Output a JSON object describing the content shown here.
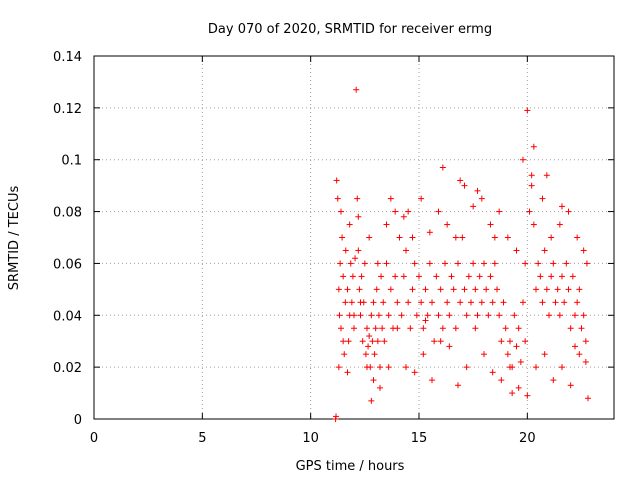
{
  "chart_data": {
    "type": "scatter",
    "title": "Day 070 of 2020, SRMTID for receiver ermg",
    "xlabel": "GPS time / hours",
    "ylabel": "SRMTID / TECUs",
    "xlim": [
      0,
      24
    ],
    "ylim": [
      0,
      0.14
    ],
    "xticks": [
      0,
      5,
      10,
      15,
      20
    ],
    "xtick_labels": [
      "0",
      "5",
      "10",
      "15",
      "20"
    ],
    "yticks": [
      0,
      0.02,
      0.04,
      0.06,
      0.08,
      0.1,
      0.12,
      0.14
    ],
    "ytick_labels": [
      "0",
      "0.02",
      "0.04",
      "0.06",
      "0.08",
      "0.1",
      "0.12",
      "0.14"
    ],
    "grid": true,
    "marker": "+",
    "color": "#ff0000",
    "series": [
      {
        "name": "SRMTID",
        "x": [
          11.15,
          11.17,
          11.2,
          11.25,
          11.3,
          11.33,
          11.36,
          11.4,
          11.45,
          11.5,
          11.55,
          11.6,
          11.62,
          11.7,
          11.75,
          11.8,
          11.85,
          11.9,
          11.95,
          12.0,
          12.1,
          12.15,
          12.2,
          12.25,
          12.3,
          12.35,
          12.4,
          12.45,
          12.5,
          12.55,
          12.6,
          12.65,
          12.7,
          12.75,
          12.8,
          12.85,
          12.9,
          12.95,
          13.0,
          13.05,
          13.1,
          13.15,
          13.2,
          13.25,
          13.3,
          13.35,
          13.4,
          13.5,
          13.6,
          13.7,
          13.8,
          13.9,
          14.0,
          14.1,
          14.2,
          14.3,
          14.4,
          14.5,
          14.6,
          14.7,
          14.8,
          14.9,
          15.0,
          15.1,
          15.2,
          15.3,
          15.4,
          15.5,
          15.6,
          15.7,
          15.8,
          15.9,
          16.0,
          16.1,
          16.2,
          16.3,
          16.4,
          16.5,
          16.6,
          16.7,
          16.8,
          16.9,
          17.0,
          17.1,
          17.2,
          17.3,
          17.4,
          17.5,
          17.6,
          17.7,
          17.8,
          17.9,
          18.0,
          18.1,
          18.2,
          18.3,
          18.4,
          18.5,
          18.6,
          18.7,
          18.8,
          18.9,
          19.0,
          19.1,
          19.2,
          19.3,
          19.4,
          19.5,
          19.6,
          19.7,
          19.8,
          19.9,
          20.0,
          20.1,
          20.2,
          20.3,
          20.4,
          20.5,
          20.6,
          20.7,
          20.8,
          20.9,
          21.0,
          21.1,
          21.2,
          21.3,
          21.4,
          21.5,
          21.6,
          21.7,
          21.8,
          21.9,
          22.0,
          22.1,
          22.2,
          22.3,
          22.4,
          22.5,
          22.6,
          22.7,
          22.8,
          11.3,
          11.5,
          11.7,
          12.0,
          12.3,
          12.6,
          12.9,
          13.2,
          13.6,
          14.0,
          14.4,
          14.8,
          15.2,
          15.6,
          16.0,
          16.4,
          16.8,
          17.2,
          17.6,
          18.0,
          18.4,
          18.8,
          19.2,
          19.6,
          20.0,
          20.4,
          20.8,
          21.2,
          21.6,
          22.0,
          22.4,
          22.7,
          11.4,
          11.8,
          12.2,
          12.7,
          13.1,
          13.5,
          13.9,
          14.3,
          14.7,
          15.1,
          15.5,
          15.9,
          16.3,
          16.7,
          17.1,
          17.5,
          17.9,
          18.3,
          18.7,
          19.1,
          19.5,
          19.9,
          20.3,
          20.7,
          21.1,
          21.5,
          21.9,
          22.3,
          22.6,
          12.05,
          12.8,
          13.7,
          14.5,
          15.3,
          16.1,
          16.9,
          17.7,
          18.5,
          19.3,
          19.8,
          20.2,
          20.9,
          21.6,
          22.2,
          22.75
        ],
        "y": [
          0.0,
          0.001,
          0.092,
          0.085,
          0.05,
          0.04,
          0.06,
          0.035,
          0.07,
          0.055,
          0.025,
          0.045,
          0.065,
          0.05,
          0.03,
          0.04,
          0.06,
          0.045,
          0.055,
          0.035,
          0.127,
          0.085,
          0.078,
          0.05,
          0.04,
          0.055,
          0.03,
          0.045,
          0.06,
          0.025,
          0.035,
          0.028,
          0.032,
          0.02,
          0.04,
          0.03,
          0.045,
          0.025,
          0.035,
          0.05,
          0.03,
          0.04,
          0.02,
          0.055,
          0.035,
          0.045,
          0.03,
          0.06,
          0.04,
          0.05,
          0.035,
          0.055,
          0.045,
          0.07,
          0.04,
          0.055,
          0.065,
          0.045,
          0.035,
          0.05,
          0.06,
          0.04,
          0.055,
          0.045,
          0.035,
          0.05,
          0.04,
          0.06,
          0.045,
          0.03,
          0.055,
          0.04,
          0.05,
          0.035,
          0.06,
          0.045,
          0.04,
          0.055,
          0.05,
          0.035,
          0.06,
          0.045,
          0.07,
          0.05,
          0.04,
          0.055,
          0.045,
          0.06,
          0.05,
          0.04,
          0.055,
          0.045,
          0.06,
          0.05,
          0.04,
          0.055,
          0.045,
          0.06,
          0.05,
          0.04,
          0.03,
          0.045,
          0.035,
          0.025,
          0.03,
          0.02,
          0.04,
          0.028,
          0.035,
          0.022,
          0.045,
          0.03,
          0.119,
          0.08,
          0.09,
          0.075,
          0.05,
          0.06,
          0.055,
          0.045,
          0.065,
          0.05,
          0.04,
          0.055,
          0.06,
          0.045,
          0.05,
          0.04,
          0.055,
          0.045,
          0.06,
          0.05,
          0.035,
          0.055,
          0.04,
          0.045,
          0.05,
          0.035,
          0.04,
          0.03,
          0.008,
          0.02,
          0.03,
          0.018,
          0.04,
          0.045,
          0.02,
          0.015,
          0.012,
          0.02,
          0.035,
          0.02,
          0.018,
          0.025,
          0.015,
          0.03,
          0.028,
          0.013,
          0.02,
          0.035,
          0.025,
          0.018,
          0.015,
          0.02,
          0.012,
          0.009,
          0.02,
          0.025,
          0.015,
          0.02,
          0.013,
          0.025,
          0.022,
          0.08,
          0.075,
          0.065,
          0.07,
          0.06,
          0.075,
          0.08,
          0.078,
          0.07,
          0.085,
          0.072,
          0.08,
          0.075,
          0.07,
          0.09,
          0.082,
          0.085,
          0.075,
          0.08,
          0.07,
          0.065,
          0.06,
          0.105,
          0.085,
          0.07,
          0.075,
          0.08,
          0.07,
          0.065,
          0.062,
          0.007,
          0.085,
          0.08,
          0.038,
          0.097,
          0.092,
          0.088,
          0.07,
          0.01,
          0.1,
          0.094,
          0.094,
          0.082,
          0.028,
          0.06
        ]
      }
    ]
  }
}
